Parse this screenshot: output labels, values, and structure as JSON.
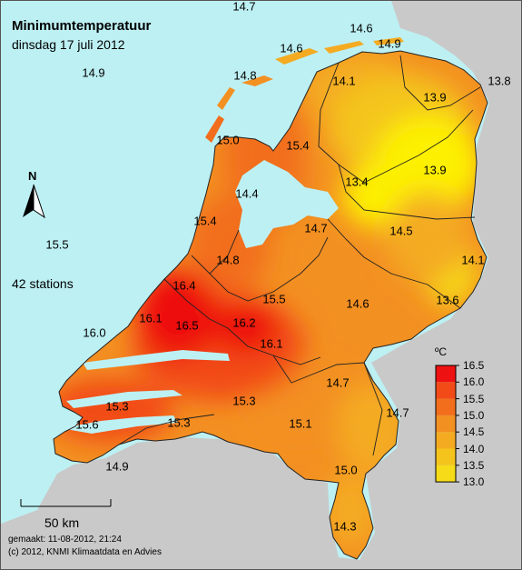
{
  "title": "Minimumtemperatuur",
  "subtitle": "dinsdag 17 juli 2012",
  "stations_text": "42 stations",
  "north_label": "N",
  "scale_label": "50 km",
  "footer": {
    "made": "gemaakt: 11-08-2012, 21:24",
    "copyright": "(c) 2012, KNMI Klimaatdata en Advies"
  },
  "legend": {
    "unit": "ºC",
    "ticks": [
      "16.5",
      "16.0",
      "15.5",
      "15.0",
      "14.5",
      "14.0",
      "13.5",
      "13.0"
    ],
    "colors": [
      "#ee1111",
      "#f24b18",
      "#f26e1c",
      "#f39022",
      "#f4ab22",
      "#f4c41c",
      "#f6db18",
      "#fdf002"
    ]
  },
  "station_values": [
    {
      "name": "top-edge",
      "value": "14.7"
    },
    {
      "name": "sea-northwest",
      "value": "14.9"
    },
    {
      "name": "sea-west",
      "value": "15.5"
    },
    {
      "name": "sea-southwest",
      "value": "16.0"
    },
    {
      "name": "vlieland",
      "value": "14.8"
    },
    {
      "name": "terschelling",
      "value": "14.6"
    },
    {
      "name": "ameland",
      "value": "14.6"
    },
    {
      "name": "schiermonnikoog",
      "value": "14.9"
    },
    {
      "name": "lauwersoog",
      "value": "14.1"
    },
    {
      "name": "groningen",
      "value": "13.9"
    },
    {
      "name": "nieuw-beerta",
      "value": "13.8"
    },
    {
      "name": "de-kooy",
      "value": "15.0"
    },
    {
      "name": "stavoren",
      "value": "15.4"
    },
    {
      "name": "marknesse",
      "value": "13.4"
    },
    {
      "name": "eelde-south",
      "value": "13.9"
    },
    {
      "name": "berkhout",
      "value": "14.4"
    },
    {
      "name": "ijmuiden",
      "value": "15.4"
    },
    {
      "name": "lelystad",
      "value": "14.7"
    },
    {
      "name": "hoogeveen",
      "value": "14.5"
    },
    {
      "name": "schiphol",
      "value": "14.8"
    },
    {
      "name": "twenthe",
      "value": "14.1"
    },
    {
      "name": "voorschoten",
      "value": "16.4"
    },
    {
      "name": "de-bilt",
      "value": "15.5"
    },
    {
      "name": "deelen",
      "value": "14.6"
    },
    {
      "name": "hupsel",
      "value": "13.6"
    },
    {
      "name": "hoek-van-holland",
      "value": "16.1"
    },
    {
      "name": "rotterdam",
      "value": "16.5"
    },
    {
      "name": "cabauw",
      "value": "16.2"
    },
    {
      "name": "herwijnen",
      "value": "16.1"
    },
    {
      "name": "volkel",
      "value": "14.7"
    },
    {
      "name": "vlissingen",
      "value": "15.3"
    },
    {
      "name": "gilze-rijen",
      "value": "15.3"
    },
    {
      "name": "eindhoven",
      "value": "15.1"
    },
    {
      "name": "arcen",
      "value": "14.7"
    },
    {
      "name": "westdorpe",
      "value": "15.6"
    },
    {
      "name": "woensdrecht",
      "value": "15.3"
    },
    {
      "name": "hoofdplaat",
      "value": "14.9"
    },
    {
      "name": "ell",
      "value": "15.0"
    },
    {
      "name": "maastricht",
      "value": "14.3"
    }
  ]
}
